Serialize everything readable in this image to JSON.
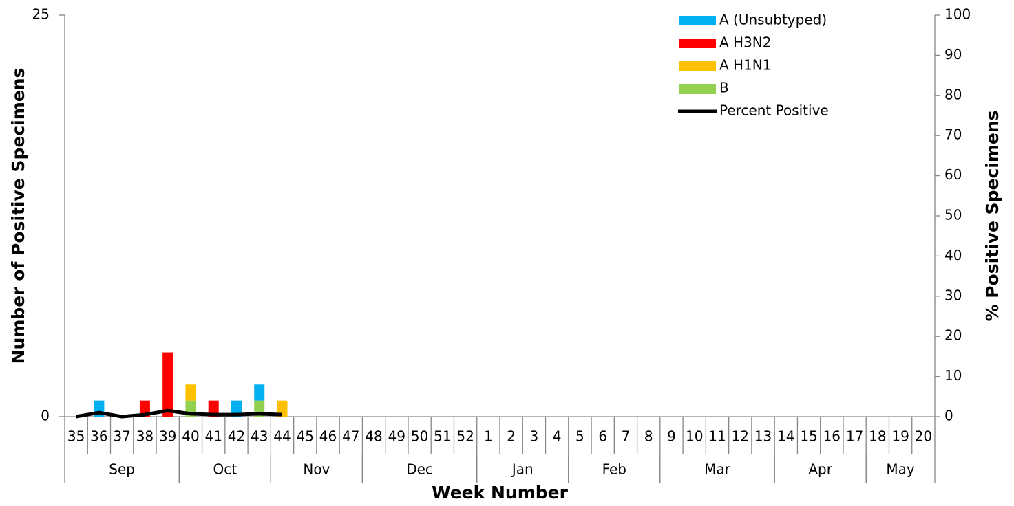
{
  "chart_data": {
    "type": "stacked_bar_line",
    "y_label": "Number of Positive Specimens",
    "y2_label": "% Positive Specimens",
    "x_label": "Week Number",
    "categories": [
      "35",
      "36",
      "37",
      "38",
      "39",
      "40",
      "41",
      "42",
      "43",
      "44",
      "45",
      "46",
      "47",
      "48",
      "49",
      "50",
      "51",
      "52",
      "1",
      "2",
      "3",
      "4",
      "5",
      "6",
      "7",
      "8",
      "9",
      "10",
      "11",
      "12",
      "13",
      "14",
      "15",
      "16",
      "17",
      "18",
      "19",
      "20"
    ],
    "groups": [
      {
        "label": "Sep",
        "span": 5
      },
      {
        "label": "Oct",
        "span": 4
      },
      {
        "label": "Nov",
        "span": 4
      },
      {
        "label": "Dec",
        "span": 5
      },
      {
        "label": "Jan",
        "span": 4
      },
      {
        "label": "Feb",
        "span": 4
      },
      {
        "label": "Mar",
        "span": 5
      },
      {
        "label": "Apr",
        "span": 4
      },
      {
        "label": "May",
        "span": 3
      }
    ],
    "series": [
      {
        "name": "A (Unsubtyped)",
        "color": "#00b0f0",
        "values": [
          0,
          1,
          0,
          0,
          0,
          0,
          0,
          1,
          1,
          0,
          null,
          null,
          null,
          null,
          null,
          null,
          null,
          null,
          null,
          null,
          null,
          null,
          null,
          null,
          null,
          null,
          null,
          null,
          null,
          null,
          null,
          null,
          null,
          null,
          null,
          null,
          null,
          null
        ]
      },
      {
        "name": "A H3N2",
        "color": "#ff0000",
        "values": [
          0,
          0,
          0,
          1,
          4,
          0,
          1,
          0,
          0,
          0,
          null,
          null,
          null,
          null,
          null,
          null,
          null,
          null,
          null,
          null,
          null,
          null,
          null,
          null,
          null,
          null,
          null,
          null,
          null,
          null,
          null,
          null,
          null,
          null,
          null,
          null,
          null,
          null
        ]
      },
      {
        "name": "A H1N1",
        "color": "#ffc000",
        "values": [
          0,
          0,
          0,
          0,
          0,
          1,
          0,
          0,
          0,
          1,
          null,
          null,
          null,
          null,
          null,
          null,
          null,
          null,
          null,
          null,
          null,
          null,
          null,
          null,
          null,
          null,
          null,
          null,
          null,
          null,
          null,
          null,
          null,
          null,
          null,
          null,
          null,
          null
        ]
      },
      {
        "name": "B",
        "color": "#92d050",
        "values": [
          0,
          0,
          0,
          0,
          0,
          1,
          0,
          0,
          1,
          0,
          null,
          null,
          null,
          null,
          null,
          null,
          null,
          null,
          null,
          null,
          null,
          null,
          null,
          null,
          null,
          null,
          null,
          null,
          null,
          null,
          null,
          null,
          null,
          null,
          null,
          null,
          null,
          null
        ]
      },
      {
        "name": "Percent Positive",
        "color": "#000000",
        "axis": "y2",
        "values": [
          0,
          1,
          0,
          0.5,
          1.5,
          0.7,
          0.5,
          0.5,
          0.7,
          0.5,
          null,
          null,
          null,
          null,
          null,
          null,
          null,
          null,
          null,
          null,
          null,
          null,
          null,
          null,
          null,
          null,
          null,
          null,
          null,
          null,
          null,
          null,
          null,
          null,
          null,
          null,
          null,
          null
        ]
      }
    ],
    "ylim": [
      0,
      25
    ],
    "yticks": [
      0,
      25
    ],
    "y2lim": [
      0,
      100
    ],
    "y2ticks": [
      0,
      10,
      20,
      30,
      40,
      50,
      60,
      70,
      80,
      90,
      100
    ],
    "legend": "top-right"
  }
}
